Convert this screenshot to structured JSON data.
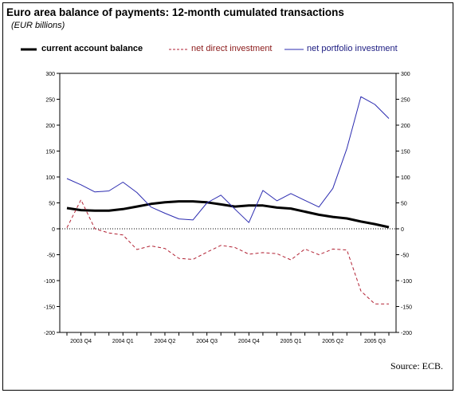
{
  "header": {
    "title": "Euro area balance of payments: 12-month cumulated transactions",
    "subtitle": "(EUR billions)"
  },
  "legend": {
    "items": [
      {
        "label": "current account balance",
        "color": "#000000",
        "style": "solid-thick"
      },
      {
        "label": "net direct investment",
        "color": "#b22234",
        "style": "dashed"
      },
      {
        "label": "net portfolio investment",
        "color": "#2b2bb0",
        "style": "solid"
      }
    ]
  },
  "footer": {
    "source": "Source: ECB."
  },
  "chart_data": {
    "type": "line",
    "title": "Euro area balance of payments: 12-month cumulated transactions",
    "subtitle": "(EUR billions)",
    "ylim": [
      -200,
      300
    ],
    "yticks": [
      -200,
      -150,
      -100,
      -50,
      0,
      50,
      100,
      150,
      200,
      250,
      300
    ],
    "x_tick_labels": [
      "2003 Q4",
      "2004 Q1",
      "2004 Q2",
      "2004 Q3",
      "2004 Q4",
      "2005 Q1",
      "2005 Q2",
      "2005 Q3"
    ],
    "x_tick_positions": [
      1,
      4,
      7,
      10,
      13,
      16,
      19,
      22
    ],
    "x": [
      0,
      1,
      2,
      3,
      4,
      5,
      6,
      7,
      8,
      9,
      10,
      11,
      12,
      13,
      14,
      15,
      16,
      17,
      18,
      19,
      20,
      21,
      22,
      23
    ],
    "zero_line": "dotted",
    "legend_position": "top",
    "series": [
      {
        "name": "current account balance",
        "color": "#000000",
        "values": [
          40,
          36,
          35,
          35,
          38,
          43,
          48,
          51,
          53,
          53,
          51,
          47,
          43,
          45,
          45,
          41,
          39,
          33,
          27,
          23,
          20,
          14,
          9,
          3
        ]
      },
      {
        "name": "net direct investment",
        "color": "#b22234",
        "values": [
          2,
          56,
          0,
          -8,
          -12,
          -40,
          -33,
          -38,
          -57,
          -59,
          -45,
          -32,
          -36,
          -49,
          -46,
          -48,
          -60,
          -39,
          -50,
          -39,
          -41,
          -120,
          -145,
          -145
        ]
      },
      {
        "name": "net portfolio investment",
        "color": "#2b2bb0",
        "values": [
          97,
          85,
          71,
          73,
          90,
          70,
          42,
          30,
          19,
          17,
          50,
          65,
          38,
          12,
          74,
          54,
          68,
          55,
          42,
          78,
          155,
          255,
          240,
          213
        ]
      }
    ]
  }
}
